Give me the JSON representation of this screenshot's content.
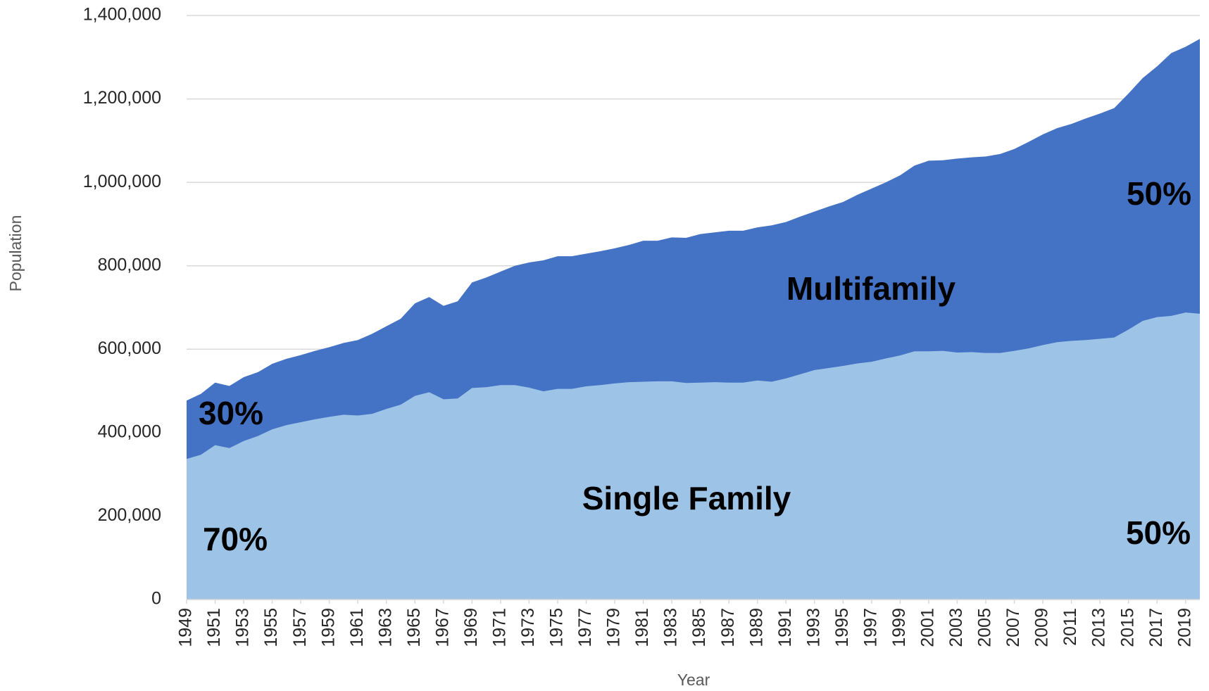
{
  "chart_data": {
    "type": "stacked-area",
    "x_label": "Year",
    "y_label": "Population",
    "x": [
      1949,
      1950,
      1951,
      1952,
      1953,
      1954,
      1955,
      1956,
      1957,
      1958,
      1959,
      1960,
      1961,
      1962,
      1963,
      1964,
      1965,
      1966,
      1967,
      1968,
      1969,
      1970,
      1971,
      1972,
      1973,
      1974,
      1975,
      1976,
      1977,
      1978,
      1979,
      1980,
      1981,
      1982,
      1983,
      1984,
      1985,
      1986,
      1987,
      1988,
      1989,
      1990,
      1991,
      1992,
      1993,
      1994,
      1995,
      1996,
      1997,
      1998,
      1999,
      2000,
      2001,
      2002,
      2003,
      2004,
      2005,
      2006,
      2007,
      2008,
      2009,
      2010,
      2011,
      2012,
      2013,
      2014,
      2015,
      2016,
      2017,
      2018,
      2019,
      2020
    ],
    "series": [
      {
        "name": "Single Family",
        "color": "#9dc3e6",
        "values": [
          337000,
          347000,
          370000,
          363000,
          380000,
          392000,
          408000,
          418000,
          425000,
          432000,
          438000,
          443000,
          441000,
          445000,
          457000,
          467000,
          488000,
          497000,
          480000,
          482000,
          507000,
          509000,
          514000,
          514000,
          508000,
          499000,
          505000,
          505000,
          511000,
          514000,
          518000,
          521000,
          522000,
          523000,
          523000,
          519000,
          520000,
          521000,
          520000,
          520000,
          525000,
          522000,
          530000,
          540000,
          550000,
          555000,
          560000,
          566000,
          570000,
          578000,
          585000,
          595000,
          595000,
          596000,
          592000,
          593000,
          591000,
          591000,
          596000,
          602000,
          610000,
          617000,
          620000,
          622000,
          625000,
          628000,
          647000,
          668000,
          677000,
          680000,
          688000,
          685000
        ]
      },
      {
        "name": "Multifamily",
        "color": "#4472c4",
        "values": [
          140000,
          146000,
          150000,
          149000,
          153000,
          153000,
          157000,
          159000,
          161000,
          164000,
          167000,
          172000,
          181000,
          192000,
          198000,
          206000,
          222000,
          228000,
          224000,
          233000,
          253000,
          263000,
          272000,
          286000,
          300000,
          314000,
          318000,
          318000,
          318000,
          321000,
          324000,
          329000,
          338000,
          337000,
          345000,
          348000,
          356000,
          359000,
          364000,
          364000,
          367000,
          375000,
          375000,
          378000,
          380000,
          387000,
          393000,
          404000,
          415000,
          422000,
          432000,
          445000,
          457000,
          457000,
          465000,
          467000,
          471000,
          477000,
          484000,
          495000,
          505000,
          513000,
          520000,
          531000,
          540000,
          550000,
          566000,
          582000,
          601000,
          630000,
          637000,
          659000
        ]
      }
    ],
    "annotations": [
      {
        "text": "30%"
      },
      {
        "text": "70%"
      },
      {
        "text": "50%"
      },
      {
        "text": "50%"
      }
    ],
    "xlim": [
      1949,
      2020
    ],
    "xticks": [
      1949,
      1951,
      1953,
      1955,
      1957,
      1959,
      1961,
      1963,
      1965,
      1967,
      1969,
      1971,
      1973,
      1975,
      1977,
      1979,
      1981,
      1983,
      1985,
      1987,
      1989,
      1991,
      1993,
      1995,
      1997,
      1999,
      2001,
      2003,
      2005,
      2007,
      2009,
      2011,
      2013,
      2015,
      2017,
      2019
    ],
    "ylim": [
      0,
      1400000
    ],
    "yticks": [
      0,
      {
        "value": 200000,
        "label": "200,000"
      },
      {
        "value": 400000,
        "label": "400,000"
      },
      {
        "value": 600000,
        "label": "600,000"
      },
      {
        "value": 800000,
        "label": "800,000"
      },
      {
        "value": 1000000,
        "label": "1,000,000"
      },
      {
        "value": 1200000,
        "label": "1,200,000"
      },
      {
        "value": 1400000,
        "label": "1,400,000"
      }
    ],
    "grid": true
  }
}
